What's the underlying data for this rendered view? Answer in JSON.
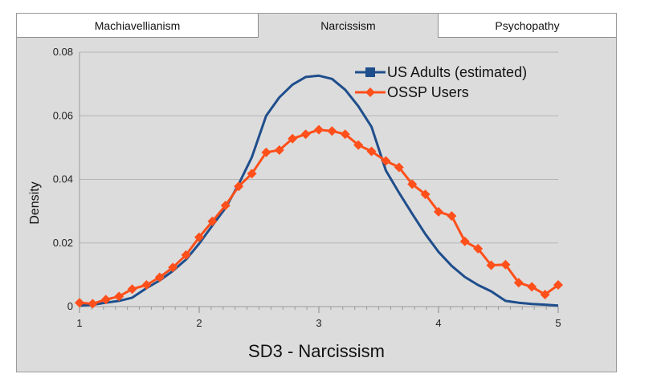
{
  "tabs": [
    {
      "label": "Machiavellianism",
      "active": false
    },
    {
      "label": "Narcissism",
      "active": true
    },
    {
      "label": "Psychopathy",
      "active": false
    }
  ],
  "colors": {
    "background": "#dcdcdc",
    "grid": "#b4b4b4",
    "series_us": "#1f4e8c",
    "series_ossp": "#ff4f1a"
  },
  "chart_data": {
    "type": "line",
    "title": "",
    "xlabel": "SD3 - Narcissism",
    "ylabel": "Density",
    "xlim": [
      1,
      5
    ],
    "ylim": [
      0,
      0.08
    ],
    "xticks": [
      "1",
      "2",
      "3",
      "4",
      "5"
    ],
    "yticks": [
      "0",
      "0.02",
      "0.04",
      "0.06",
      "0.08"
    ],
    "grid": true,
    "legend_position": "top-right",
    "series": [
      {
        "name": "US Adults (estimated)",
        "marker": "square",
        "x": [
          1.0,
          1.11,
          1.22,
          1.33,
          1.44,
          1.56,
          1.67,
          1.78,
          1.89,
          2.0,
          2.11,
          2.22,
          2.33,
          2.44,
          2.56,
          2.67,
          2.78,
          2.89,
          3.0,
          3.11,
          3.22,
          3.33,
          3.44,
          3.56,
          3.67,
          3.78,
          3.89,
          4.0,
          4.11,
          4.22,
          4.33,
          4.44,
          4.56,
          4.67,
          4.78,
          4.89,
          5.0
        ],
        "y": [
          0.0003,
          0.0006,
          0.0012,
          0.0018,
          0.0028,
          0.0058,
          0.0082,
          0.0112,
          0.0148,
          0.0198,
          0.0255,
          0.031,
          0.0385,
          0.047,
          0.06,
          0.0658,
          0.0698,
          0.0722,
          0.0726,
          0.0716,
          0.0682,
          0.063,
          0.0565,
          0.0428,
          0.0358,
          0.0292,
          0.0228,
          0.0172,
          0.0128,
          0.0093,
          0.0068,
          0.0048,
          0.0018,
          0.0012,
          0.0008,
          0.0006,
          0.0003
        ]
      },
      {
        "name": "OSSP Users",
        "marker": "diamond",
        "x": [
          1.0,
          1.11,
          1.22,
          1.33,
          1.44,
          1.56,
          1.67,
          1.78,
          1.89,
          2.0,
          2.11,
          2.22,
          2.33,
          2.44,
          2.56,
          2.67,
          2.78,
          2.89,
          3.0,
          3.11,
          3.22,
          3.33,
          3.44,
          3.56,
          3.67,
          3.78,
          3.89,
          4.0,
          4.11,
          4.22,
          4.33,
          4.44,
          4.56,
          4.67,
          4.78,
          4.89,
          5.0
        ],
        "y": [
          0.0012,
          0.0009,
          0.0022,
          0.0032,
          0.0055,
          0.0068,
          0.0092,
          0.0123,
          0.0162,
          0.0218,
          0.0268,
          0.0318,
          0.0378,
          0.0418,
          0.0485,
          0.0492,
          0.0528,
          0.0542,
          0.0556,
          0.0552,
          0.0542,
          0.0508,
          0.0488,
          0.0458,
          0.0438,
          0.0385,
          0.0353,
          0.0298,
          0.0285,
          0.0205,
          0.0182,
          0.013,
          0.0132,
          0.0075,
          0.0062,
          0.0038,
          0.0068
        ]
      }
    ]
  }
}
